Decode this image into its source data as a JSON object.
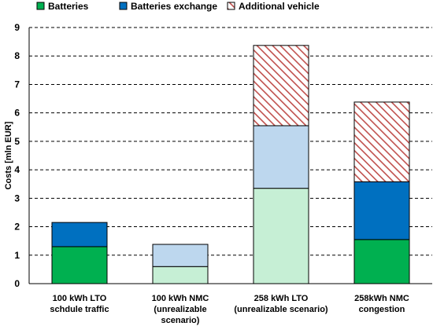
{
  "chart_data": {
    "type": "bar",
    "stacked": true,
    "ylabel": "Costs [mln EUR]",
    "ylim": [
      0,
      9
    ],
    "yticks": [
      0,
      1,
      2,
      3,
      4,
      5,
      6,
      7,
      8,
      9
    ],
    "grid": "horizontal-dashed",
    "legend_position": "top",
    "categories": [
      [
        "100 kWh LTO",
        "schdule traffic"
      ],
      [
        "100 kWh NMC",
        "(unrealizable",
        "scenario)"
      ],
      [
        "258 kWh LTO",
        "(unrealizable scenario)"
      ],
      [
        "258kWh NMC",
        "congestion"
      ]
    ],
    "unrealizable": [
      false,
      true,
      true,
      false
    ],
    "series": [
      {
        "name": "Batteries",
        "color": "#00b050",
        "light_color": "#c6efd5",
        "values": [
          1.3,
          0.6,
          3.35,
          1.55
        ]
      },
      {
        "name": "Batteries exchange",
        "color": "#0070c0",
        "light_color": "#bdd7ee",
        "values": [
          0.85,
          0.78,
          2.2,
          2.03
        ]
      },
      {
        "name": "Additional vehicle",
        "color": "#c00000",
        "pattern": "hatched",
        "values": [
          0,
          0,
          2.82,
          2.8
        ]
      }
    ]
  }
}
